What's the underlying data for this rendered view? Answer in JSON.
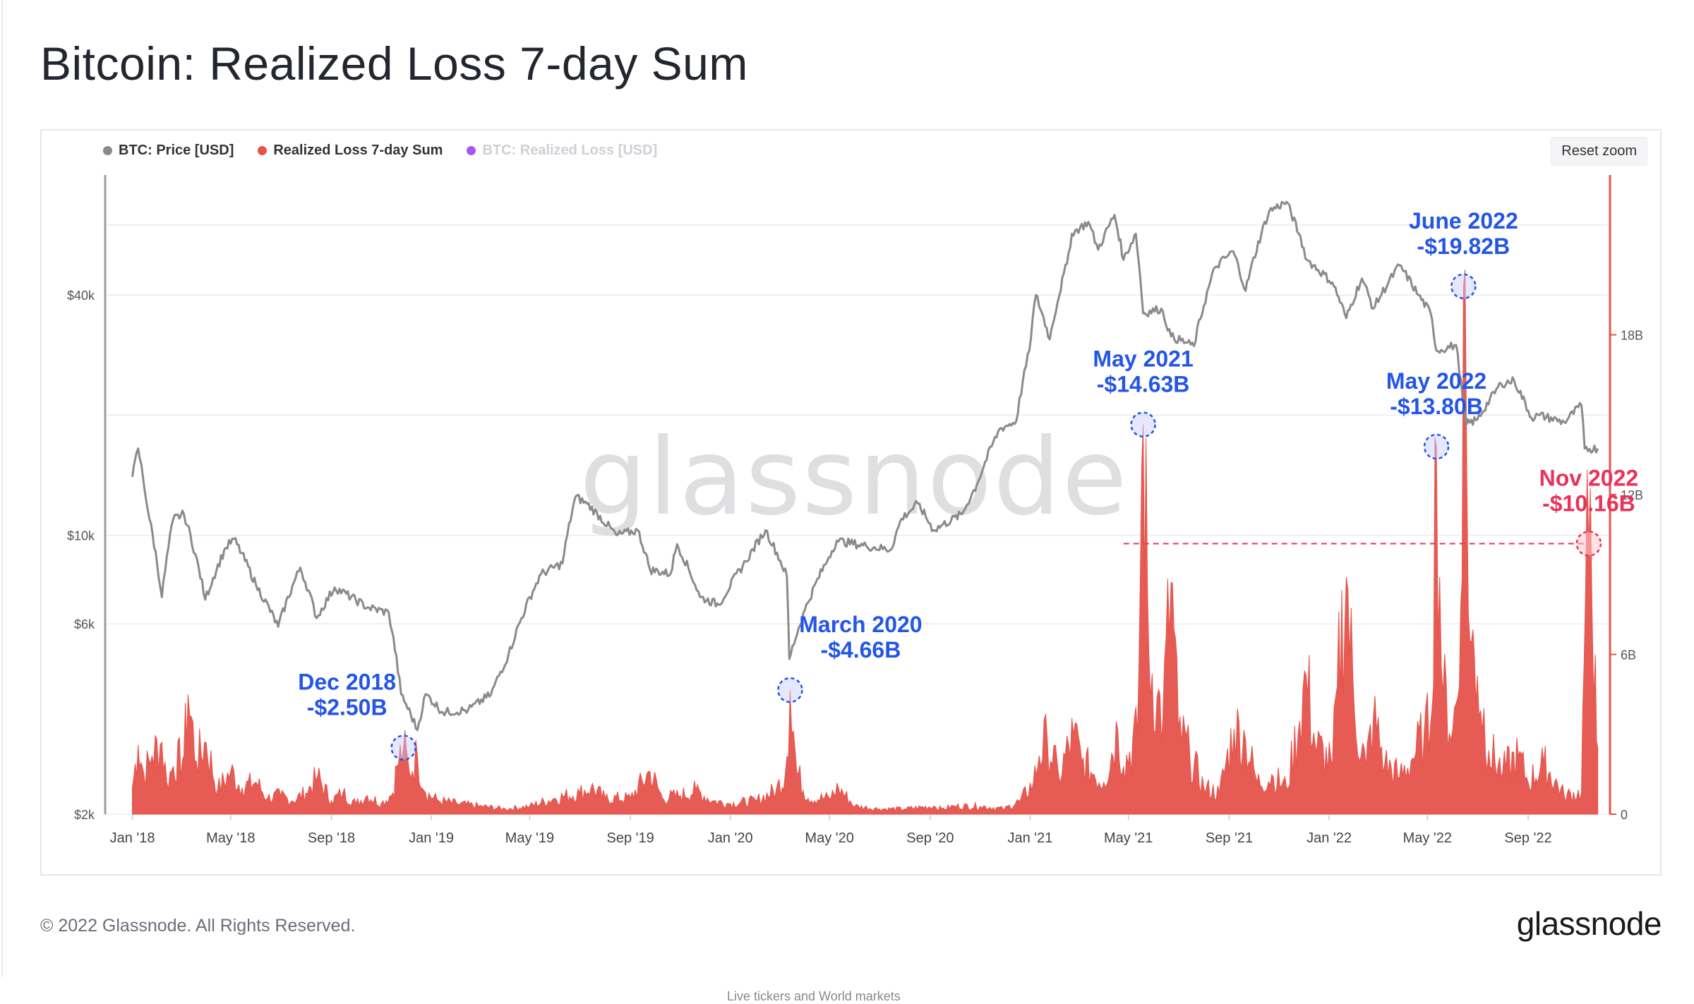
{
  "page": {
    "title": "Bitcoin: Realized Loss 7-day Sum",
    "copyright": "© 2022 Glassnode. All Rights Reserved.",
    "brand_logo": "glassnode",
    "watermark": "glassnode",
    "reset_zoom_label": "Reset zoom",
    "cutoff_text": "Live tickers and World markets"
  },
  "legend": [
    {
      "label": "BTC: Price [USD]",
      "color": "#8a8a8e",
      "enabled": true
    },
    {
      "label": "Realized Loss 7-day Sum",
      "color": "#e5534b",
      "enabled": true
    },
    {
      "label": "BTC: Realized Loss [USD]",
      "color": "#a855f7",
      "enabled": false
    }
  ],
  "chart_data": {
    "type": "line+area",
    "title": "Bitcoin: Realized Loss 7-day Sum",
    "x_ticks": [
      "Jan '18",
      "May '18",
      "Sep '18",
      "Jan '19",
      "May '19",
      "Sep '19",
      "Jan '20",
      "May '20",
      "Sep '20",
      "Jan '21",
      "May '21",
      "Sep '21",
      "Jan '22",
      "May '22",
      "Sep '22"
    ],
    "y_left": {
      "scale": "log",
      "ticks": [
        "$2k",
        "$6k",
        "$10k",
        "$40k"
      ],
      "tick_values": [
        2000,
        6000,
        10000,
        40000
      ],
      "range": [
        2000,
        80000
      ]
    },
    "y_right": {
      "scale": "linear",
      "ticks": [
        "0",
        "6B",
        "12B",
        "18B"
      ],
      "tick_values": [
        0,
        6,
        12,
        18
      ],
      "range": [
        0,
        24
      ],
      "unit": "B"
    },
    "price_series": {
      "name": "BTC: Price [USD]",
      "color": "#8a8a8e",
      "points": [
        [
          "2018-01-01",
          14000
        ],
        [
          "2018-01-08",
          16500
        ],
        [
          "2018-01-20",
          11500
        ],
        [
          "2018-02-06",
          7000
        ],
        [
          "2018-02-20",
          11000
        ],
        [
          "2018-03-05",
          11300
        ],
        [
          "2018-03-31",
          6900
        ],
        [
          "2018-04-25",
          9300
        ],
        [
          "2018-05-05",
          9800
        ],
        [
          "2018-06-01",
          7500
        ],
        [
          "2018-06-28",
          5900
        ],
        [
          "2018-07-25",
          8300
        ],
        [
          "2018-08-14",
          6200
        ],
        [
          "2018-09-05",
          7400
        ],
        [
          "2018-10-15",
          6600
        ],
        [
          "2018-11-10",
          6400
        ],
        [
          "2018-11-25",
          4000
        ],
        [
          "2018-12-15",
          3250
        ],
        [
          "2018-12-25",
          4000
        ],
        [
          "2019-01-15",
          3600
        ],
        [
          "2019-02-15",
          3650
        ],
        [
          "2019-03-15",
          4000
        ],
        [
          "2019-04-05",
          5000
        ],
        [
          "2019-05-15",
          8000
        ],
        [
          "2019-06-10",
          8500
        ],
        [
          "2019-06-26",
          12500
        ],
        [
          "2019-07-10",
          12000
        ],
        [
          "2019-08-15",
          10000
        ],
        [
          "2019-09-10",
          10300
        ],
        [
          "2019-09-25",
          8200
        ],
        [
          "2019-10-20",
          8000
        ],
        [
          "2019-10-28",
          9500
        ],
        [
          "2019-11-25",
          7000
        ],
        [
          "2019-12-18",
          6700
        ],
        [
          "2020-01-20",
          8600
        ],
        [
          "2020-02-13",
          10300
        ],
        [
          "2020-03-10",
          7900
        ],
        [
          "2020-03-13",
          4900
        ],
        [
          "2020-04-01",
          6500
        ],
        [
          "2020-04-30",
          8800
        ],
        [
          "2020-05-10",
          9700
        ],
        [
          "2020-06-15",
          9400
        ],
        [
          "2020-07-15",
          9200
        ],
        [
          "2020-07-28",
          11000
        ],
        [
          "2020-08-17",
          12000
        ],
        [
          "2020-09-05",
          10300
        ],
        [
          "2020-10-10",
          11300
        ],
        [
          "2020-10-28",
          13400
        ],
        [
          "2020-11-25",
          18500
        ],
        [
          "2020-12-15",
          19300
        ],
        [
          "2020-12-31",
          29000
        ],
        [
          "2021-01-08",
          40000
        ],
        [
          "2021-01-25",
          31000
        ],
        [
          "2021-02-15",
          48000
        ],
        [
          "2021-02-21",
          57000
        ],
        [
          "2021-03-13",
          61000
        ],
        [
          "2021-03-25",
          52000
        ],
        [
          "2021-04-14",
          63500
        ],
        [
          "2021-04-25",
          49000
        ],
        [
          "2021-05-10",
          57000
        ],
        [
          "2021-05-19",
          36000
        ],
        [
          "2021-06-10",
          37000
        ],
        [
          "2021-06-22",
          31500
        ],
        [
          "2021-07-20",
          29800
        ],
        [
          "2021-08-15",
          47000
        ],
        [
          "2021-09-06",
          51500
        ],
        [
          "2021-09-21",
          41000
        ],
        [
          "2021-10-20",
          65000
        ],
        [
          "2021-11-10",
          68500
        ],
        [
          "2021-11-25",
          57000
        ],
        [
          "2021-12-05",
          49000
        ],
        [
          "2022-01-05",
          43000
        ],
        [
          "2022-01-22",
          35000
        ],
        [
          "2022-02-10",
          44000
        ],
        [
          "2022-02-24",
          37000
        ],
        [
          "2022-03-28",
          47500
        ],
        [
          "2022-04-20",
          40000
        ],
        [
          "2022-05-05",
          36000
        ],
        [
          "2022-05-12",
          29000
        ],
        [
          "2022-06-05",
          30000
        ],
        [
          "2022-06-13",
          22000
        ],
        [
          "2022-06-18",
          19000
        ],
        [
          "2022-07-01",
          19500
        ],
        [
          "2022-07-30",
          24000
        ],
        [
          "2022-08-15",
          24400
        ],
        [
          "2022-09-05",
          19700
        ],
        [
          "2022-09-15",
          20000
        ],
        [
          "2022-10-15",
          19200
        ],
        [
          "2022-11-05",
          21200
        ],
        [
          "2022-11-09",
          16500
        ],
        [
          "2022-11-25",
          16500
        ]
      ]
    },
    "loss_series": {
      "name": "Realized Loss 7-day Sum",
      "color": "#e5534b",
      "unit": "B",
      "points": [
        [
          "2018-01-01",
          1.0
        ],
        [
          "2018-01-08",
          2.6
        ],
        [
          "2018-01-15",
          1.5
        ],
        [
          "2018-01-25",
          2.2
        ],
        [
          "2018-02-06",
          2.7
        ],
        [
          "2018-02-12",
          1.2
        ],
        [
          "2018-02-20",
          1.8
        ],
        [
          "2018-03-05",
          2.2
        ],
        [
          "2018-03-10",
          4.5
        ],
        [
          "2018-03-20",
          2.0
        ],
        [
          "2018-04-01",
          2.7
        ],
        [
          "2018-04-15",
          0.9
        ],
        [
          "2018-05-01",
          1.6
        ],
        [
          "2018-05-15",
          1.0
        ],
        [
          "2018-06-01",
          1.2
        ],
        [
          "2018-06-15",
          0.6
        ],
        [
          "2018-07-01",
          0.7
        ],
        [
          "2018-07-15",
          0.5
        ],
        [
          "2018-08-01",
          0.8
        ],
        [
          "2018-08-15",
          1.4
        ],
        [
          "2018-09-01",
          0.5
        ],
        [
          "2018-09-15",
          0.8
        ],
        [
          "2018-10-01",
          0.4
        ],
        [
          "2018-10-15",
          0.7
        ],
        [
          "2018-11-01",
          0.4
        ],
        [
          "2018-11-15",
          0.8
        ],
        [
          "2018-11-20",
          1.8
        ],
        [
          "2018-11-28",
          2.5
        ],
        [
          "2018-12-05",
          1.6
        ],
        [
          "2018-12-15",
          2.2
        ],
        [
          "2018-12-25",
          0.8
        ],
        [
          "2019-01-10",
          0.5
        ],
        [
          "2019-02-01",
          0.4
        ],
        [
          "2019-03-01",
          0.3
        ],
        [
          "2019-04-01",
          0.2
        ],
        [
          "2019-05-01",
          0.3
        ],
        [
          "2019-06-01",
          0.6
        ],
        [
          "2019-07-01",
          0.8
        ],
        [
          "2019-07-15",
          1.0
        ],
        [
          "2019-08-01",
          0.6
        ],
        [
          "2019-09-01",
          0.6
        ],
        [
          "2019-09-25",
          1.6
        ],
        [
          "2019-10-10",
          0.6
        ],
        [
          "2019-11-01",
          0.7
        ],
        [
          "2019-11-20",
          0.9
        ],
        [
          "2019-12-10",
          0.5
        ],
        [
          "2020-01-01",
          0.4
        ],
        [
          "2020-02-01",
          0.5
        ],
        [
          "2020-02-26",
          0.9
        ],
        [
          "2020-03-08",
          1.5
        ],
        [
          "2020-03-14",
          4.66
        ],
        [
          "2020-03-22",
          1.6
        ],
        [
          "2020-04-05",
          0.6
        ],
        [
          "2020-05-01",
          0.6
        ],
        [
          "2020-05-12",
          1.0
        ],
        [
          "2020-06-01",
          0.3
        ],
        [
          "2020-07-01",
          0.2
        ],
        [
          "2020-08-01",
          0.2
        ],
        [
          "2020-09-05",
          0.3
        ],
        [
          "2020-09-15",
          0.2
        ],
        [
          "2020-10-01",
          0.3
        ],
        [
          "2020-11-01",
          0.3
        ],
        [
          "2020-12-01",
          0.2
        ],
        [
          "2020-12-20",
          0.5
        ],
        [
          "2021-01-05",
          1.2
        ],
        [
          "2021-01-12",
          2.2
        ],
        [
          "2021-01-22",
          2.8
        ],
        [
          "2021-02-05",
          1.4
        ],
        [
          "2021-02-23",
          3.0
        ],
        [
          "2021-03-05",
          2.0
        ],
        [
          "2021-03-20",
          1.5
        ],
        [
          "2021-04-01",
          1.2
        ],
        [
          "2021-04-18",
          3.2
        ],
        [
          "2021-04-25",
          1.8
        ],
        [
          "2021-05-12",
          3.0
        ],
        [
          "2021-05-19",
          14.63
        ],
        [
          "2021-05-26",
          6.0
        ],
        [
          "2021-06-05",
          4.4
        ],
        [
          "2021-06-12",
          3.5
        ],
        [
          "2021-06-22",
          8.7
        ],
        [
          "2021-07-01",
          3.2
        ],
        [
          "2021-07-15",
          2.2
        ],
        [
          "2021-08-01",
          1.0
        ],
        [
          "2021-08-20",
          0.8
        ],
        [
          "2021-09-07",
          3.2
        ],
        [
          "2021-09-21",
          2.8
        ],
        [
          "2021-10-05",
          1.2
        ],
        [
          "2021-10-25",
          1.4
        ],
        [
          "2021-11-10",
          1.0
        ],
        [
          "2021-11-26",
          3.5
        ],
        [
          "2021-12-04",
          5.2
        ],
        [
          "2021-12-15",
          2.6
        ],
        [
          "2022-01-05",
          1.8
        ],
        [
          "2022-01-11",
          4.8
        ],
        [
          "2022-01-22",
          8.9
        ],
        [
          "2022-02-01",
          3.8
        ],
        [
          "2022-02-15",
          1.8
        ],
        [
          "2022-02-24",
          3.6
        ],
        [
          "2022-03-10",
          1.9
        ],
        [
          "2022-03-28",
          1.4
        ],
        [
          "2022-04-11",
          2.0
        ],
        [
          "2022-04-27",
          3.0
        ],
        [
          "2022-05-05",
          3.4
        ],
        [
          "2022-05-12",
          13.8
        ],
        [
          "2022-05-20",
          4.5
        ],
        [
          "2022-06-01",
          3.2
        ],
        [
          "2022-06-09",
          4.8
        ],
        [
          "2022-06-14",
          19.82
        ],
        [
          "2022-06-22",
          6.5
        ],
        [
          "2022-07-01",
          5.2
        ],
        [
          "2022-07-15",
          2.4
        ],
        [
          "2022-08-01",
          1.6
        ],
        [
          "2022-08-20",
          2.2
        ],
        [
          "2022-09-01",
          1.2
        ],
        [
          "2022-09-20",
          1.9
        ],
        [
          "2022-10-15",
          0.7
        ],
        [
          "2022-11-05",
          0.8
        ],
        [
          "2022-11-10",
          8.2
        ],
        [
          "2022-11-14",
          10.16
        ],
        [
          "2022-11-22",
          6.0
        ],
        [
          "2022-11-25",
          2.5
        ]
      ]
    },
    "annotations": [
      {
        "title": "Dec 2018",
        "value_label": "-$2.50B",
        "date": "2018-11-28",
        "value": 2.5,
        "color": "#2456e6"
      },
      {
        "title": "March 2020",
        "value_label": "-$4.66B",
        "date": "2020-03-14",
        "value": 4.66,
        "color": "#2456e6"
      },
      {
        "title": "May 2021",
        "value_label": "-$14.63B",
        "date": "2021-05-19",
        "value": 14.63,
        "color": "#2456e6"
      },
      {
        "title": "May 2022",
        "value_label": "-$13.80B",
        "date": "2022-05-12",
        "value": 13.8,
        "color": "#2456e6"
      },
      {
        "title": "June 2022",
        "value_label": "-$19.82B",
        "date": "2022-06-14",
        "value": 19.82,
        "color": "#2456e6"
      },
      {
        "title": "Nov 2022",
        "value_label": "-$10.16B",
        "date": "2022-11-14",
        "value": 10.16,
        "color": "#e8335a",
        "reference_line_from": "2021-04-25"
      }
    ]
  }
}
